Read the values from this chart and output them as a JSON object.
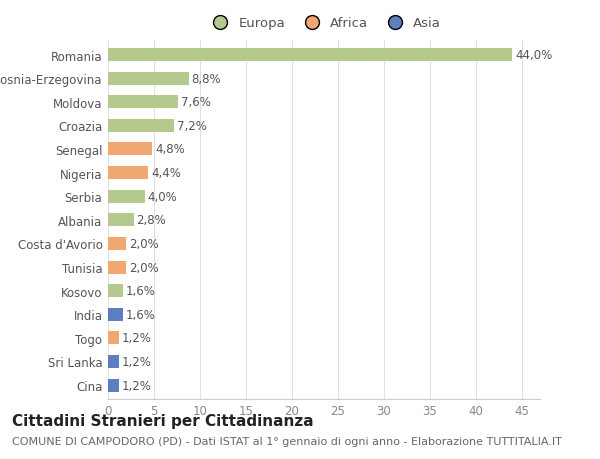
{
  "countries": [
    "Romania",
    "Bosnia-Erzegovina",
    "Moldova",
    "Croazia",
    "Senegal",
    "Nigeria",
    "Serbia",
    "Albania",
    "Costa d'Avorio",
    "Tunisia",
    "Kosovo",
    "India",
    "Togo",
    "Sri Lanka",
    "Cina"
  ],
  "values": [
    44.0,
    8.8,
    7.6,
    7.2,
    4.8,
    4.4,
    4.0,
    2.8,
    2.0,
    2.0,
    1.6,
    1.6,
    1.2,
    1.2,
    1.2
  ],
  "labels": [
    "44,0%",
    "8,8%",
    "7,6%",
    "7,2%",
    "4,8%",
    "4,4%",
    "4,0%",
    "2,8%",
    "2,0%",
    "2,0%",
    "1,6%",
    "1,6%",
    "1,2%",
    "1,2%",
    "1,2%"
  ],
  "continents": [
    "Europa",
    "Europa",
    "Europa",
    "Europa",
    "Africa",
    "Africa",
    "Europa",
    "Europa",
    "Africa",
    "Africa",
    "Europa",
    "Asia",
    "Africa",
    "Asia",
    "Asia"
  ],
  "colors": {
    "Europa": "#b5c98e",
    "Africa": "#f0a870",
    "Asia": "#5b7fbf"
  },
  "xlim": [
    0,
    47
  ],
  "xticks": [
    0,
    5,
    10,
    15,
    20,
    25,
    30,
    35,
    40,
    45
  ],
  "title": "Cittadini Stranieri per Cittadinanza",
  "subtitle": "COMUNE DI CAMPODORO (PD) - Dati ISTAT al 1° gennaio di ogni anno - Elaborazione TUTTITALIA.IT",
  "bg_color": "#ffffff",
  "grid_color": "#e0e0e0",
  "bar_height": 0.55,
  "label_fontsize": 8.5,
  "tick_fontsize": 8.5,
  "title_fontsize": 11,
  "subtitle_fontsize": 8
}
